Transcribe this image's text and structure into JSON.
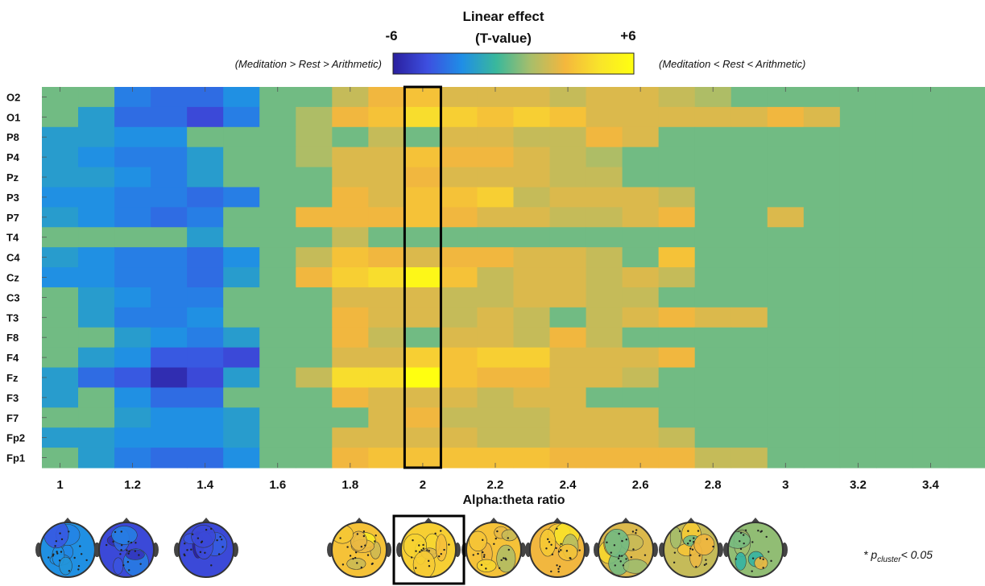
{
  "chart_data": {
    "type": "heatmap",
    "colorbar": {
      "title_line1": "Linear effect",
      "title_line2": "(T-value)",
      "min_label": "-6",
      "max_label": "+6",
      "left_note": "(Meditation > Rest > Arithmetic)",
      "right_note": "(Meditation < Rest < Arithmetic)",
      "range": [
        -6,
        6
      ],
      "colors": [
        "#2a1f9e",
        "#3d4fe0",
        "#1f8ee6",
        "#39b89c",
        "#a8be6a",
        "#f4b73d",
        "#f9e42a",
        "#ffff10"
      ]
    },
    "xlabel": "Alpha:theta ratio",
    "x_ticks": [
      "1",
      "1.2",
      "1.4",
      "1.6",
      "1.8",
      "2",
      "2.2",
      "2.4",
      "2.6",
      "2.8",
      "3",
      "3.2",
      "3.4"
    ],
    "xlim": [
      0.95,
      3.55
    ],
    "x_centers": [
      1.0,
      1.1,
      1.2,
      1.3,
      1.4,
      1.5,
      1.6,
      1.7,
      1.8,
      1.9,
      2.0,
      2.1,
      2.2,
      2.3,
      2.4,
      2.5,
      2.6,
      2.7,
      2.8,
      2.9,
      3.0,
      3.1,
      3.2,
      3.3,
      3.4,
      3.5
    ],
    "y_labels": [
      "O2",
      "O1",
      "P8",
      "P4",
      "Pz",
      "P3",
      "P7",
      "T4",
      "C4",
      "Cz",
      "C3",
      "T3",
      "F8",
      "F4",
      "Fz",
      "F3",
      "F7",
      "Fp2",
      "Fp1"
    ],
    "highlight_x": 2.0,
    "values": [
      [
        0,
        0,
        -3,
        -3.5,
        -3.5,
        -2.5,
        0,
        0,
        1.5,
        2.5,
        3,
        2,
        2,
        2,
        1.5,
        2,
        2,
        1.5,
        1,
        0,
        0,
        0,
        0,
        0,
        0,
        0
      ],
      [
        0,
        -2,
        -3.5,
        -3.5,
        -4.5,
        -3,
        0,
        1,
        2.5,
        3,
        4,
        3.5,
        3,
        3.5,
        3,
        2,
        2,
        2,
        2,
        2,
        2.5,
        2,
        0,
        0,
        0,
        0
      ],
      [
        -2,
        -2,
        -2.5,
        -2.5,
        0,
        0,
        0,
        1,
        0,
        1.5,
        0,
        2,
        2,
        1.5,
        1.5,
        2.5,
        2,
        0,
        0,
        0,
        0,
        0,
        0,
        0,
        0,
        0
      ],
      [
        -2,
        -2.5,
        -3,
        -3,
        -2,
        0,
        0,
        1,
        2,
        2,
        3,
        2.5,
        2.5,
        2,
        1.5,
        1,
        0,
        0,
        0,
        0,
        0,
        0,
        0,
        0,
        0,
        0
      ],
      [
        -2,
        -2,
        -2.5,
        -3,
        -2,
        0,
        0,
        0,
        2,
        2,
        2.5,
        2,
        2,
        2,
        1.5,
        1.5,
        0,
        0,
        0,
        0,
        0,
        0,
        0,
        0,
        0,
        0
      ],
      [
        -2.5,
        -2.5,
        -3,
        -3,
        -3.5,
        -3,
        0,
        0,
        2.5,
        2,
        3,
        3,
        3.5,
        1.5,
        2,
        2,
        2,
        1.5,
        0,
        0,
        0,
        0,
        0,
        0,
        0,
        0
      ],
      [
        -2,
        -2.5,
        -3,
        -3.5,
        -3,
        0,
        0,
        2.5,
        2.5,
        2.5,
        3,
        2.5,
        2,
        2,
        1.5,
        1.5,
        2,
        2.5,
        0,
        0,
        2,
        0,
        0,
        0,
        0,
        0
      ],
      [
        0,
        0,
        0,
        0,
        -2,
        0,
        0,
        0,
        1.5,
        0,
        0,
        0,
        0,
        0,
        0,
        0,
        0,
        0,
        0,
        0,
        0,
        0,
        0,
        0,
        0,
        0
      ],
      [
        -2,
        -2.5,
        -3,
        -3,
        -3.5,
        -2.5,
        0,
        1.5,
        3,
        2.5,
        2,
        2.5,
        2.5,
        2,
        2,
        1.5,
        0,
        3,
        0,
        0,
        0,
        0,
        0,
        0,
        0,
        0
      ],
      [
        -2.5,
        -2.5,
        -3,
        -3,
        -3.5,
        -2,
        0,
        2.5,
        3.5,
        4,
        5.5,
        3,
        1.5,
        2,
        2,
        1.5,
        2,
        1.5,
        0,
        0,
        0,
        0,
        0,
        0,
        0,
        0
      ],
      [
        0,
        -2,
        -2.5,
        -3,
        -3,
        0,
        0,
        0,
        2,
        2,
        2,
        1.5,
        1.5,
        2,
        2,
        1.5,
        1.5,
        0,
        0,
        0,
        0,
        0,
        0,
        0,
        0,
        0
      ],
      [
        0,
        -2,
        -3,
        -3,
        -2.5,
        0,
        0,
        0,
        2.5,
        2,
        2,
        1.5,
        2,
        1.5,
        0,
        1.5,
        2,
        2.5,
        2,
        2,
        0,
        0,
        0,
        0,
        0,
        0
      ],
      [
        0,
        0,
        -2,
        -2.5,
        -3,
        -2,
        0,
        0,
        2.5,
        1.5,
        0,
        2,
        2,
        1.5,
        2.5,
        1.5,
        0,
        0,
        0,
        0,
        0,
        0,
        0,
        0,
        0,
        0
      ],
      [
        0,
        -2,
        -2.5,
        -4,
        -4,
        -4.5,
        0,
        0,
        2,
        2,
        3.5,
        3,
        3.5,
        3.5,
        2,
        2,
        2,
        2.5,
        0,
        0,
        0,
        0,
        0,
        0,
        0,
        0
      ],
      [
        -2,
        -3.5,
        -4,
        -5.5,
        -4.5,
        -2,
        0,
        1.5,
        4,
        4,
        6,
        3,
        2.5,
        2.5,
        2,
        2,
        1.5,
        0,
        0,
        0,
        0,
        0,
        0,
        0,
        0,
        0
      ],
      [
        -2,
        0,
        -2.5,
        -3.5,
        -3.5,
        0,
        0,
        0,
        2.5,
        2,
        2,
        2,
        1.5,
        2,
        2,
        0,
        0,
        0,
        0,
        0,
        0,
        0,
        0,
        0,
        0,
        0
      ],
      [
        0,
        0,
        -2,
        -2.5,
        -2.5,
        -2,
        0,
        0,
        0,
        2,
        2.5,
        1.5,
        1.5,
        1.5,
        2,
        2,
        2,
        0,
        0,
        0,
        0,
        0,
        0,
        0,
        0,
        0
      ],
      [
        -2,
        -2,
        -2.5,
        -2.5,
        -2.5,
        -2,
        0,
        0,
        2,
        2,
        2,
        2,
        1.5,
        1.5,
        2,
        2,
        2,
        1.5,
        0,
        0,
        0,
        0,
        0,
        0,
        0,
        0
      ],
      [
        0,
        -2,
        -3,
        -3.5,
        -3.5,
        -2.5,
        0,
        0,
        2.5,
        3,
        3,
        3,
        3,
        3,
        2.5,
        2.5,
        2.5,
        2.5,
        1.5,
        1.5,
        0,
        0,
        0,
        0,
        0,
        0
      ]
    ],
    "topomaps": [
      {
        "name": "topomap-1",
        "mean_t": -2.5
      },
      {
        "name": "topomap-2",
        "mean_t": -4.5
      },
      {
        "name": "topomap-3",
        "mean_t": -4.5
      },
      {
        "name": "topomap-4",
        "mean_t": 3
      },
      {
        "name": "topomap-5",
        "mean_t": 3.5,
        "highlighted": true
      },
      {
        "name": "topomap-6",
        "mean_t": 3
      },
      {
        "name": "topomap-7",
        "mean_t": 2.5
      },
      {
        "name": "topomap-8",
        "mean_t": 2
      },
      {
        "name": "topomap-9",
        "mean_t": 1.5
      },
      {
        "name": "topomap-10",
        "mean_t": 0.5
      }
    ],
    "significance_note": {
      "prefix": "* p",
      "subscript": "cluster",
      "suffix": "< 0.05"
    }
  }
}
